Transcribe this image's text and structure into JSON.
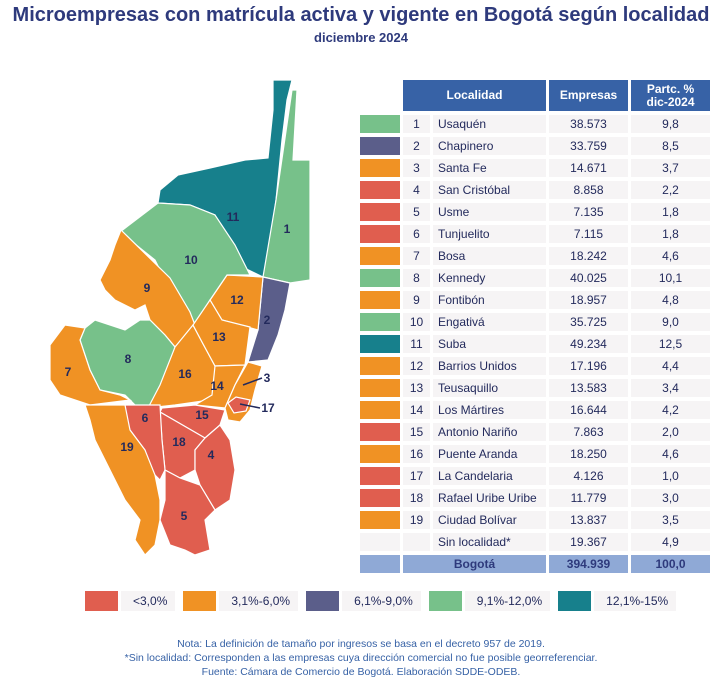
{
  "title": "Microempresas con matrícula activa y vigente en Bogotá según localidad",
  "subtitle": "diciembre 2024",
  "colors": {
    "lt3": "#e05e4f",
    "3to6": "#f09224",
    "6to9": "#5b5e8a",
    "9to12": "#77c18a",
    "12to15": "#17808c"
  },
  "table": {
    "headers": [
      "Localidad",
      "Empresas",
      "Partc. %",
      "dic-2024"
    ],
    "rows": [
      {
        "n": "1",
        "name": "Usaquén",
        "empresas": "38.573",
        "pct": "9,8",
        "cls": "9to12"
      },
      {
        "n": "2",
        "name": "Chapinero",
        "empresas": "33.759",
        "pct": "8,5",
        "cls": "6to9"
      },
      {
        "n": "3",
        "name": "Santa Fe",
        "empresas": "14.671",
        "pct": "3,7",
        "cls": "3to6"
      },
      {
        "n": "4",
        "name": "San Cristóbal",
        "empresas": "8.858",
        "pct": "2,2",
        "cls": "lt3"
      },
      {
        "n": "5",
        "name": "Usme",
        "empresas": "7.135",
        "pct": "1,8",
        "cls": "lt3"
      },
      {
        "n": "6",
        "name": "Tunjuelito",
        "empresas": "7.115",
        "pct": "1,8",
        "cls": "lt3"
      },
      {
        "n": "7",
        "name": "Bosa",
        "empresas": "18.242",
        "pct": "4,6",
        "cls": "3to6"
      },
      {
        "n": "8",
        "name": "Kennedy",
        "empresas": "40.025",
        "pct": "10,1",
        "cls": "9to12"
      },
      {
        "n": "9",
        "name": "Fontibón",
        "empresas": "18.957",
        "pct": "4,8",
        "cls": "3to6"
      },
      {
        "n": "10",
        "name": "Engativá",
        "empresas": "35.725",
        "pct": "9,0",
        "cls": "9to12"
      },
      {
        "n": "11",
        "name": "Suba",
        "empresas": "49.234",
        "pct": "12,5",
        "cls": "12to15"
      },
      {
        "n": "12",
        "name": "Barrios Unidos",
        "empresas": "17.196",
        "pct": "4,4",
        "cls": "3to6"
      },
      {
        "n": "13",
        "name": "Teusaquillo",
        "empresas": "13.583",
        "pct": "3,4",
        "cls": "3to6"
      },
      {
        "n": "14",
        "name": "Los Mártires",
        "empresas": "16.644",
        "pct": "4,2",
        "cls": "3to6"
      },
      {
        "n": "15",
        "name": "Antonio Nariño",
        "empresas": "7.863",
        "pct": "2,0",
        "cls": "lt3"
      },
      {
        "n": "16",
        "name": "Puente Aranda",
        "empresas": "18.250",
        "pct": "4,6",
        "cls": "3to6"
      },
      {
        "n": "17",
        "name": "La Candelaria",
        "empresas": "4.126",
        "pct": "1,0",
        "cls": "lt3"
      },
      {
        "n": "18",
        "name": "Rafael Uribe Uribe",
        "empresas": "11.779",
        "pct": "3,0",
        "cls": "lt3"
      },
      {
        "n": "19",
        "name": "Ciudad Bolívar",
        "empresas": "13.837",
        "pct": "3,5",
        "cls": "3to6"
      },
      {
        "n": "",
        "name": "Sin localidad*",
        "empresas": "19.367",
        "pct": "4,9",
        "cls": ""
      }
    ],
    "total": {
      "name": "Bogotá",
      "empresas": "394.939",
      "pct": "100,0"
    }
  },
  "legend": [
    {
      "label": "<3,0%",
      "cls": "lt3"
    },
    {
      "label": "3,1%-6,0%",
      "cls": "3to6"
    },
    {
      "label": "6,1%-9,0%",
      "cls": "6to9"
    },
    {
      "label": "9,1%-12,0%",
      "cls": "9to12"
    },
    {
      "label": "12,1%-15%",
      "cls": "12to15"
    }
  ],
  "notes": [
    "Nota: La definición de tamaño por ingresos se basa en el decreto 957 de 2019.",
    "*Sin localidad: Corresponden a las empresas cuya dirección comercial no fue posible georreferenciar.",
    "Fuente: Cámara de Comercio de Bogotá. Elaboración SDDE-ODEB."
  ]
}
